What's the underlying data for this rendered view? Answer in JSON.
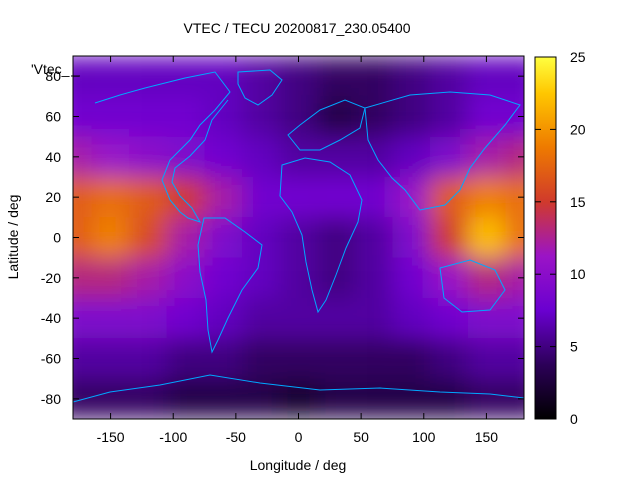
{
  "chart_data": {
    "type": "heatmap",
    "title": "VTEC / TECU 20200817_230.05400",
    "xlabel": "Longitude / deg",
    "ylabel": "Latitude / deg",
    "key_label": "'Vtec_",
    "xlim": [
      -180,
      180
    ],
    "ylim": [
      -90,
      90
    ],
    "x_ticks": [
      -150,
      -100,
      -50,
      0,
      50,
      100,
      150
    ],
    "y_ticks": [
      -80,
      -60,
      -40,
      -20,
      0,
      20,
      40,
      60,
      80
    ],
    "colorbar": {
      "range": [
        0,
        25
      ],
      "ticks": [
        0,
        5,
        10,
        15,
        20,
        25
      ]
    },
    "lat_grid": [
      80,
      60,
      40,
      20,
      0,
      -20,
      -40,
      -60,
      -80
    ],
    "lon_grid": [
      -180,
      -150,
      -120,
      -90,
      -60,
      -30,
      0,
      30,
      60,
      90,
      120,
      150,
      180
    ],
    "values": [
      [
        7,
        7,
        7,
        7,
        7,
        6,
        5,
        4,
        4,
        5,
        6,
        7,
        7
      ],
      [
        8,
        8,
        8,
        8,
        7,
        6,
        5,
        3,
        4,
        5,
        6,
        8,
        8
      ],
      [
        12,
        11,
        10,
        9,
        8,
        7,
        6,
        6,
        6,
        7,
        9,
        12,
        13
      ],
      [
        17,
        18,
        17,
        15,
        12,
        8,
        8,
        8,
        8,
        11,
        17,
        19,
        18
      ],
      [
        17,
        19,
        16,
        12,
        9,
        7,
        6,
        5,
        6,
        9,
        15,
        22,
        18
      ],
      [
        13,
        13,
        12,
        10,
        8,
        7,
        6,
        5,
        6,
        8,
        11,
        13,
        12
      ],
      [
        9,
        9,
        9,
        8,
        7,
        6,
        6,
        6,
        6,
        7,
        8,
        9,
        9
      ],
      [
        6,
        6,
        6,
        5,
        5,
        4,
        4,
        4,
        4,
        4,
        5,
        6,
        6
      ],
      [
        4,
        4,
        4,
        3,
        3,
        3,
        2,
        3,
        3,
        3,
        3,
        4,
        4
      ]
    ]
  }
}
